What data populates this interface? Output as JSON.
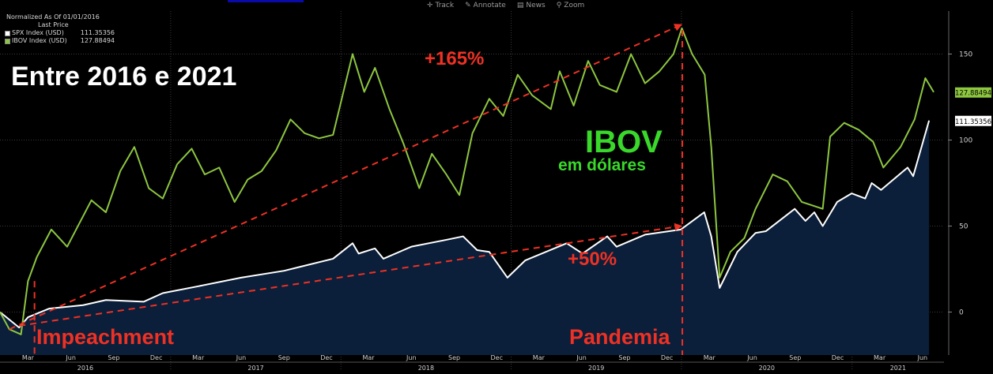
{
  "toolbar": {
    "track": "Track",
    "annotate": "Annotate",
    "news": "News",
    "zoom": "Zoom"
  },
  "legend": {
    "normalized": "Normalized As Of 01/01/2016",
    "last_price": "Last Price",
    "items": [
      {
        "name": "SPX Index (USD)",
        "value": "111.35356",
        "color": "#ffffff"
      },
      {
        "name": "IBOV Index (USD)",
        "value": "127.88494",
        "color": "#8dc63f"
      }
    ]
  },
  "chart_data": {
    "type": "line",
    "y_axis": {
      "position": "right",
      "ylim": [
        -25,
        175
      ],
      "ticks": [
        0,
        50,
        100,
        150
      ],
      "tick_labels": [
        "0",
        "50",
        "100",
        "150"
      ],
      "grid": true
    },
    "x_axis": {
      "month_labels": [
        "Mar",
        "Jun",
        "Sep",
        "Dec",
        "Mar",
        "Jun",
        "Sep",
        "Dec",
        "Mar",
        "Jun",
        "Sep",
        "Dec",
        "Mar",
        "Jun",
        "Sep",
        "Dec",
        "Mar",
        "Jun",
        "Sep",
        "Dec",
        "Mar",
        "Jun"
      ],
      "year_labels": [
        "2016",
        "2017",
        "2018",
        "2019",
        "2020",
        "2021"
      ]
    },
    "series": [
      {
        "name": "SPX Index (USD)",
        "style": "area",
        "line_color": "#ffffff",
        "fill_color": "#0b1f3a",
        "last_value_label": "111.35356",
        "x": [
          "2016-01-01",
          "2016-02-11",
          "2016-03-01",
          "2016-04-15",
          "2016-06-27",
          "2016-08-15",
          "2016-11-04",
          "2016-12-15",
          "2017-03-01",
          "2017-06-01",
          "2017-09-01",
          "2017-12-15",
          "2018-01-26",
          "2018-02-08",
          "2018-03-15",
          "2018-04-02",
          "2018-06-01",
          "2018-08-15",
          "2018-09-20",
          "2018-10-20",
          "2018-11-15",
          "2018-12-24",
          "2019-01-31",
          "2019-04-30",
          "2019-06-03",
          "2019-07-26",
          "2019-08-15",
          "2019-10-15",
          "2019-12-31",
          "2020-02-19",
          "2020-03-05",
          "2020-03-23",
          "2020-04-30",
          "2020-06-08",
          "2020-06-30",
          "2020-08-31",
          "2020-09-23",
          "2020-10-12",
          "2020-10-30",
          "2020-11-30",
          "2020-12-31",
          "2021-01-29",
          "2021-02-12",
          "2021-03-04",
          "2021-04-30",
          "2021-05-12",
          "2021-06-15"
        ],
        "values": [
          0,
          -9,
          -3,
          2,
          4,
          7,
          6,
          11,
          15,
          20,
          24,
          31,
          40,
          34,
          37,
          31,
          38,
          42,
          44,
          36,
          35,
          20,
          30,
          40,
          34,
          44,
          38,
          45,
          48,
          58,
          44,
          14,
          35,
          46,
          47,
          60,
          53,
          58,
          50,
          64,
          69,
          66,
          75,
          71,
          84,
          79,
          111.35
        ]
      },
      {
        "name": "IBOV Index (USD)",
        "style": "line",
        "line_color": "#8dc63f",
        "last_value_label": "127.88494",
        "x": [
          "2016-01-01",
          "2016-01-21",
          "2016-02-15",
          "2016-03-01",
          "2016-03-20",
          "2016-04-20",
          "2016-05-24",
          "2016-07-15",
          "2016-08-15",
          "2016-09-15",
          "2016-10-15",
          "2016-11-15",
          "2016-12-15",
          "2017-01-15",
          "2017-02-15",
          "2017-03-15",
          "2017-04-15",
          "2017-05-18",
          "2017-06-15",
          "2017-07-15",
          "2017-08-15",
          "2017-09-15",
          "2017-10-15",
          "2017-11-15",
          "2017-12-15",
          "2018-01-26",
          "2018-02-20",
          "2018-03-15",
          "2018-04-15",
          "2018-05-15",
          "2018-06-18",
          "2018-07-15",
          "2018-08-15",
          "2018-09-12",
          "2018-10-10",
          "2018-11-15",
          "2018-12-15",
          "2019-01-15",
          "2019-02-15",
          "2019-03-27",
          "2019-04-15",
          "2019-05-15",
          "2019-06-15",
          "2019-07-10",
          "2019-08-15",
          "2019-09-15",
          "2019-10-15",
          "2019-11-15",
          "2019-12-15",
          "2020-01-02",
          "2020-01-24",
          "2020-02-20",
          "2020-03-05",
          "2020-03-23",
          "2020-04-15",
          "2020-05-15",
          "2020-06-08",
          "2020-07-15",
          "2020-08-15",
          "2020-09-15",
          "2020-10-30",
          "2020-11-15",
          "2020-12-15",
          "2021-01-15",
          "2021-02-15",
          "2021-03-09",
          "2021-04-15",
          "2021-05-15",
          "2021-06-07",
          "2021-06-25"
        ],
        "values": [
          0,
          -10,
          -13,
          18,
          32,
          48,
          38,
          65,
          58,
          82,
          96,
          72,
          66,
          86,
          95,
          80,
          84,
          64,
          77,
          82,
          94,
          112,
          104,
          101,
          103,
          150,
          128,
          142,
          118,
          98,
          72,
          92,
          80,
          68,
          104,
          124,
          114,
          138,
          126,
          118,
          140,
          120,
          146,
          132,
          128,
          150,
          133,
          140,
          150,
          165,
          150,
          138,
          96,
          20,
          35,
          43,
          60,
          80,
          76,
          64,
          60,
          102,
          110,
          106,
          99,
          84,
          96,
          112,
          136,
          127.88
        ]
      }
    ],
    "annotations": [
      {
        "text": "Entre 2016 e 2021",
        "color": "#ffffff"
      },
      {
        "text": "+165%",
        "color": "#ee3124"
      },
      {
        "text": "IBOV",
        "color": "#39d82a"
      },
      {
        "text": "em dólares",
        "color": "#39d82a"
      },
      {
        "text": "+50%",
        "color": "#ee3124"
      },
      {
        "text": "Impeachment",
        "color": "#ee3124"
      },
      {
        "text": "Pandemia",
        "color": "#ee3124"
      }
    ],
    "trend_arrows": [
      {
        "from_date": "2016-01-21",
        "from_value": -10,
        "to_date": "2019-12-31",
        "to_value": 167,
        "color": "#ee3124"
      },
      {
        "from_date": "2016-02-11",
        "from_value": -8,
        "to_date": "2019-12-31",
        "to_value": 50,
        "color": "#ee3124"
      }
    ],
    "event_markers": [
      {
        "label": "Impeachment",
        "date": "2016-03-15",
        "from_value": 18,
        "to_value": -25,
        "color": "#ee3124"
      },
      {
        "label": "Pandemia",
        "date": "2020-01-03",
        "from_value": 164,
        "to_value": -25,
        "color": "#ee3124"
      }
    ]
  }
}
